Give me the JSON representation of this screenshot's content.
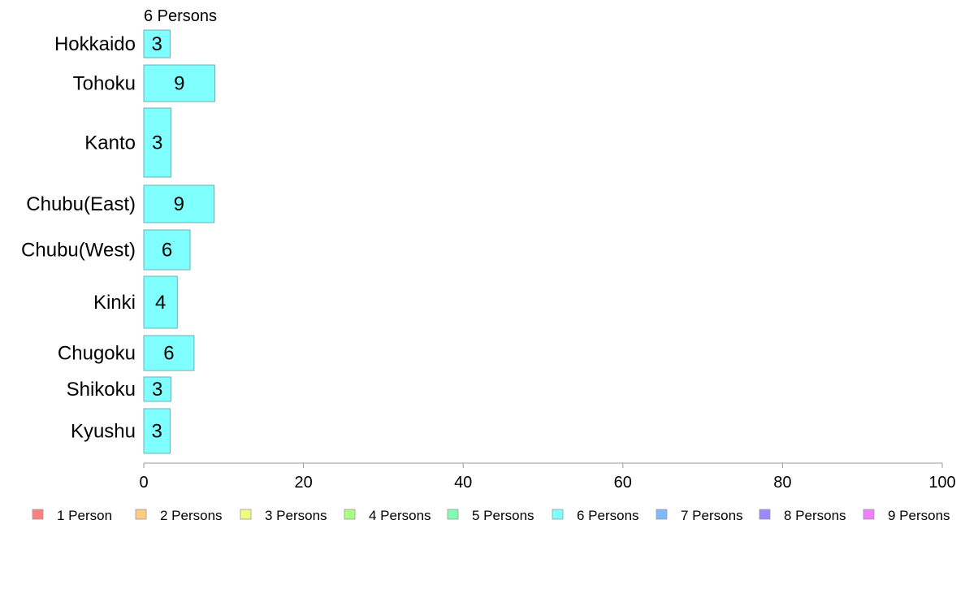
{
  "chart_data": {
    "type": "bar",
    "orientation": "horizontal",
    "series_label": "6 Persons",
    "categories": [
      "Hokkaido",
      "Tohoku",
      "Kanto",
      "Chubu(East)",
      "Chubu(West)",
      "Kinki",
      "Chugoku",
      "Shikoku",
      "Kyushu"
    ],
    "values": [
      3.3,
      8.9,
      3.4,
      8.8,
      5.8,
      4.2,
      6.3,
      3.4,
      3.3
    ],
    "value_labels": [
      "3",
      "9",
      "3",
      "9",
      "6",
      "4",
      "6",
      "3",
      "3"
    ],
    "bar_color": "#80ffff",
    "bar_stroke": "#6fb0b0",
    "xlim": [
      0,
      100
    ],
    "x_ticks": [
      "0",
      "20",
      "40",
      "60",
      "80",
      "100"
    ],
    "grid": false,
    "legend_position": "bottom",
    "legend": [
      {
        "label": "1 Person",
        "color": "#ff8080"
      },
      {
        "label": "2 Persons",
        "color": "#ffcc80"
      },
      {
        "label": "3 Persons",
        "color": "#eeff80"
      },
      {
        "label": "4 Persons",
        "color": "#a8ff80"
      },
      {
        "label": "5 Persons",
        "color": "#80ffb0"
      },
      {
        "label": "6 Persons",
        "color": "#80ffff"
      },
      {
        "label": "7 Persons",
        "color": "#80b8ff"
      },
      {
        "label": "8 Persons",
        "color": "#9c88ff"
      },
      {
        "label": "9 Persons",
        "color": "#f080ff"
      }
    ]
  }
}
